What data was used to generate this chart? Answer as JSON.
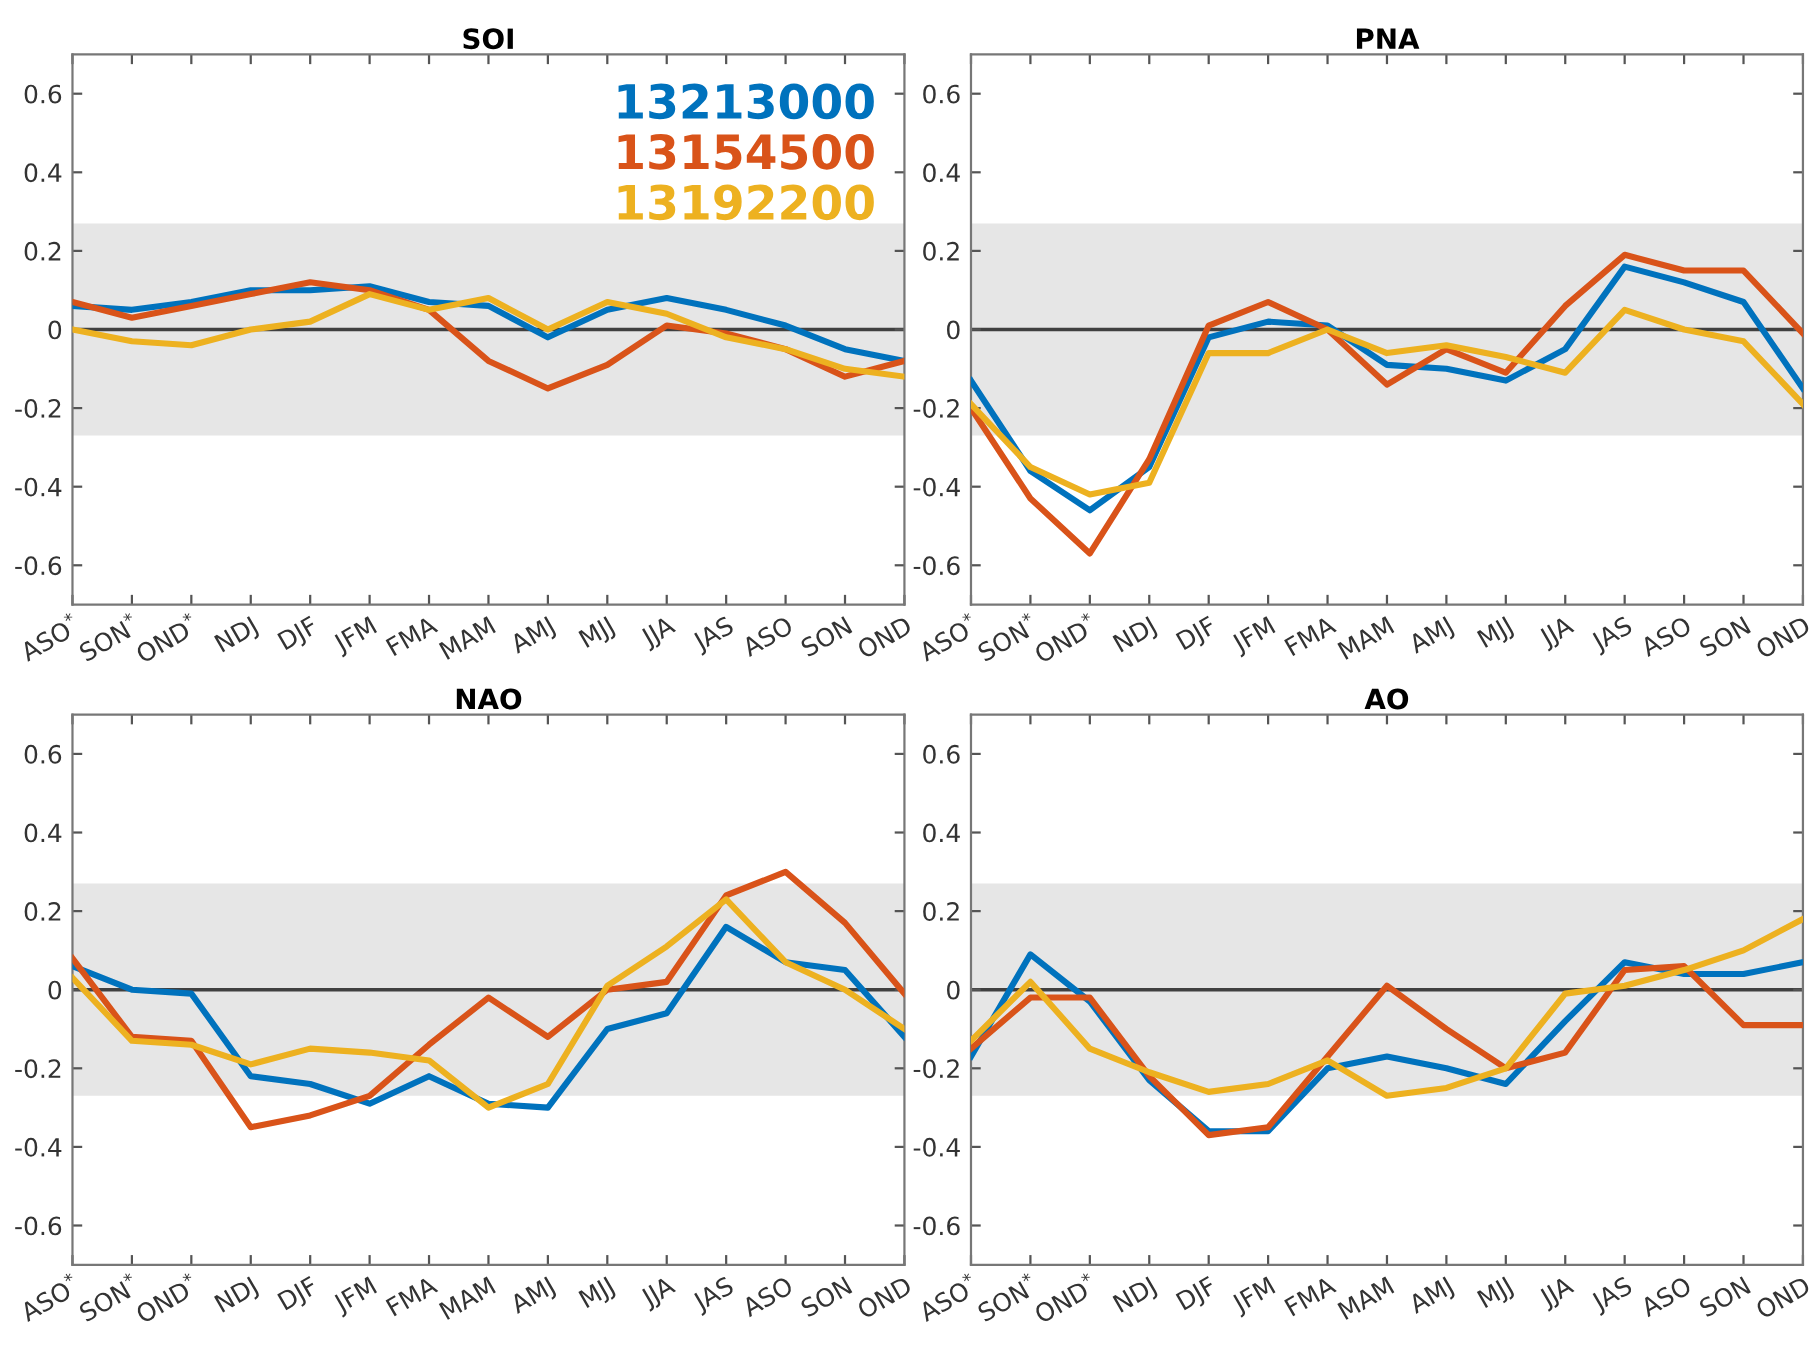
{
  "chart_data": [
    {
      "type": "line",
      "title": "SOI",
      "categories": [
        "ASO$^{*}$",
        "SON$^{*}$",
        "OND$^{*}$",
        "NDJ",
        "DJF",
        "JFM",
        "FMA",
        "MAM",
        "AMJ",
        "MJJ",
        "JJA",
        "JAS",
        "ASO",
        "SON",
        "OND"
      ],
      "ylim": [
        -0.7,
        0.7
      ],
      "yticks": [
        -0.6,
        -0.4,
        -0.2,
        0,
        0.2,
        0.4,
        0.6
      ],
      "legend": "top right",
      "bands": [
        {
          "axis": "y",
          "from": -0.27,
          "to": 0.27,
          "color": "#e6e6e6"
        }
      ],
      "ref_lines": [
        {
          "axis": "y",
          "value": 0,
          "color": "#404040"
        }
      ],
      "series": [
        {
          "name": "13213000",
          "color": "#0072bd",
          "values": [
            0.06,
            0.05,
            0.07,
            0.1,
            0.1,
            0.11,
            0.07,
            0.06,
            -0.02,
            0.05,
            0.08,
            0.05,
            0.01,
            -0.05,
            -0.08
          ]
        },
        {
          "name": "13154500",
          "color": "#d95319",
          "values": [
            0.07,
            0.03,
            0.06,
            0.09,
            0.12,
            0.1,
            0.05,
            -0.08,
            -0.15,
            -0.09,
            0.01,
            -0.01,
            -0.05,
            -0.12,
            -0.08
          ]
        },
        {
          "name": "13192200",
          "color": "#edb120",
          "values": [
            0.0,
            -0.03,
            -0.04,
            0.0,
            0.02,
            0.09,
            0.05,
            0.08,
            0.0,
            0.07,
            0.04,
            -0.02,
            -0.05,
            -0.1,
            -0.12
          ]
        }
      ]
    },
    {
      "type": "line",
      "title": "PNA",
      "categories": [
        "ASO$^{*}$",
        "SON$^{*}$",
        "OND$^{*}$",
        "NDJ",
        "DJF",
        "JFM",
        "FMA",
        "MAM",
        "AMJ",
        "MJJ",
        "JJA",
        "JAS",
        "ASO",
        "SON",
        "OND"
      ],
      "ylim": [
        -0.7,
        0.7
      ],
      "yticks": [
        -0.6,
        -0.4,
        -0.2,
        0,
        0.2,
        0.4,
        0.6
      ],
      "bands": [
        {
          "axis": "y",
          "from": -0.27,
          "to": 0.27,
          "color": "#e6e6e6"
        }
      ],
      "ref_lines": [
        {
          "axis": "y",
          "value": 0,
          "color": "#404040"
        }
      ],
      "series": [
        {
          "color": "#0072bd",
          "values": [
            -0.13,
            -0.36,
            -0.46,
            -0.35,
            -0.02,
            0.02,
            0.01,
            -0.09,
            -0.1,
            -0.13,
            -0.05,
            0.16,
            0.12,
            0.07,
            -0.15
          ]
        },
        {
          "color": "#d95319",
          "values": [
            -0.2,
            -0.43,
            -0.57,
            -0.33,
            0.01,
            0.07,
            0.0,
            -0.14,
            -0.05,
            -0.11,
            0.06,
            0.19,
            0.15,
            0.15,
            -0.01
          ]
        },
        {
          "color": "#edb120",
          "values": [
            -0.19,
            -0.35,
            -0.42,
            -0.39,
            -0.06,
            -0.06,
            0.0,
            -0.06,
            -0.04,
            -0.07,
            -0.11,
            0.05,
            0.0,
            -0.03,
            -0.19
          ]
        }
      ]
    },
    {
      "type": "line",
      "title": "NAO",
      "categories": [
        "ASO$^{*}$",
        "SON$^{*}$",
        "OND$^{*}$",
        "NDJ",
        "DJF",
        "JFM",
        "FMA",
        "MAM",
        "AMJ",
        "MJJ",
        "JJA",
        "JAS",
        "ASO",
        "SON",
        "OND"
      ],
      "ylim": [
        -0.7,
        0.7
      ],
      "yticks": [
        -0.6,
        -0.4,
        -0.2,
        0,
        0.2,
        0.4,
        0.6
      ],
      "bands": [
        {
          "axis": "y",
          "from": -0.27,
          "to": 0.27,
          "color": "#e6e6e6"
        }
      ],
      "ref_lines": [
        {
          "axis": "y",
          "value": 0,
          "color": "#404040"
        }
      ],
      "series": [
        {
          "color": "#0072bd",
          "values": [
            0.06,
            0.0,
            -0.01,
            -0.22,
            -0.24,
            -0.29,
            -0.22,
            -0.29,
            -0.3,
            -0.1,
            -0.06,
            0.16,
            0.07,
            0.05,
            -0.12
          ]
        },
        {
          "color": "#d95319",
          "values": [
            0.08,
            -0.12,
            -0.13,
            -0.35,
            -0.32,
            -0.27,
            -0.14,
            -0.02,
            -0.12,
            0.0,
            0.02,
            0.24,
            0.3,
            0.17,
            -0.01
          ]
        },
        {
          "color": "#edb120",
          "values": [
            0.03,
            -0.13,
            -0.14,
            -0.19,
            -0.15,
            -0.16,
            -0.18,
            -0.3,
            -0.24,
            0.01,
            0.11,
            0.23,
            0.07,
            0.0,
            -0.1
          ]
        }
      ]
    },
    {
      "type": "line",
      "title": "AO",
      "categories": [
        "ASO$^{*}$",
        "SON$^{*}$",
        "OND$^{*}$",
        "NDJ",
        "DJF",
        "JFM",
        "FMA",
        "MAM",
        "AMJ",
        "MJJ",
        "JJA",
        "JAS",
        "ASO",
        "SON",
        "OND"
      ],
      "ylim": [
        -0.7,
        0.7
      ],
      "yticks": [
        -0.6,
        -0.4,
        -0.2,
        0,
        0.2,
        0.4,
        0.6
      ],
      "bands": [
        {
          "axis": "y",
          "from": -0.27,
          "to": 0.27,
          "color": "#e6e6e6"
        }
      ],
      "ref_lines": [
        {
          "axis": "y",
          "value": 0,
          "color": "#404040"
        }
      ],
      "series": [
        {
          "color": "#0072bd",
          "values": [
            -0.17,
            0.09,
            -0.03,
            -0.23,
            -0.36,
            -0.36,
            -0.2,
            -0.17,
            -0.2,
            -0.24,
            -0.08,
            0.07,
            0.04,
            0.04,
            0.07
          ]
        },
        {
          "color": "#d95319",
          "values": [
            -0.15,
            -0.02,
            -0.02,
            -0.22,
            -0.37,
            -0.35,
            -0.17,
            0.01,
            -0.1,
            -0.2,
            -0.16,
            0.05,
            0.06,
            -0.09,
            -0.09
          ]
        },
        {
          "color": "#edb120",
          "values": [
            -0.13,
            0.02,
            -0.15,
            -0.21,
            -0.26,
            -0.24,
            -0.18,
            -0.27,
            -0.25,
            -0.2,
            -0.01,
            0.01,
            0.05,
            0.1,
            0.18
          ]
        }
      ]
    }
  ]
}
